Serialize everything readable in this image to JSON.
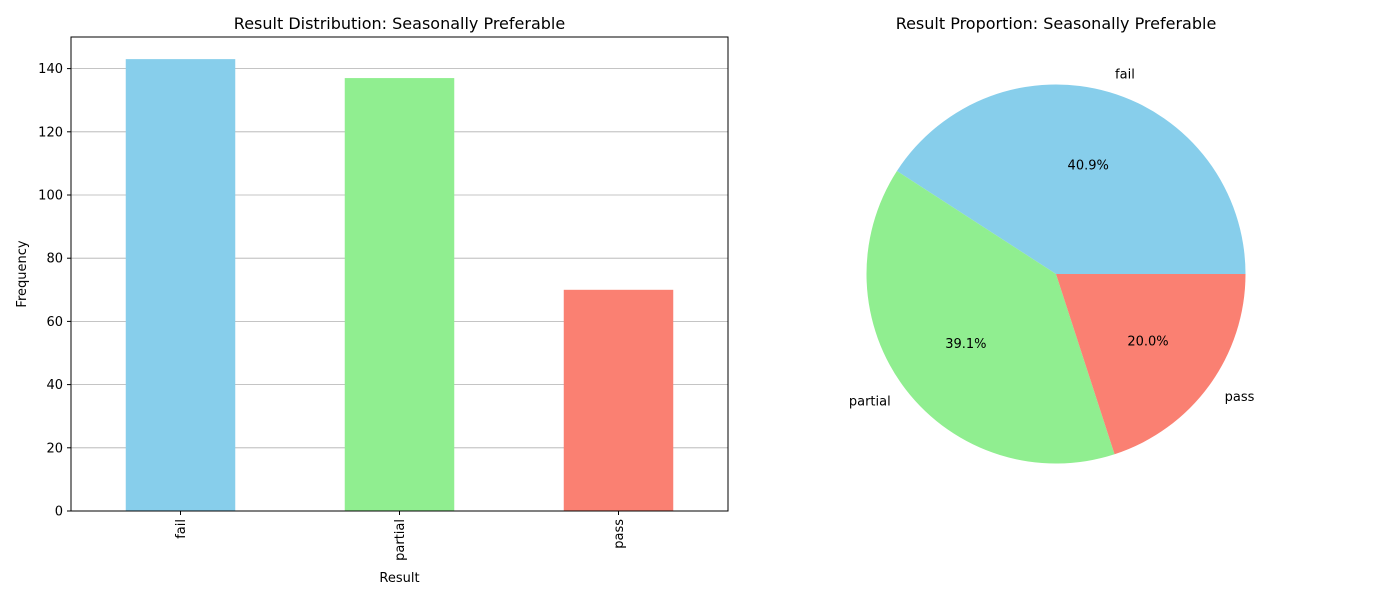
{
  "chart_data": [
    {
      "type": "bar",
      "title": "Result Distribution: Seasonally Preferable",
      "xlabel": "Result",
      "ylabel": "Frequency",
      "categories": [
        "fail",
        "partial",
        "pass"
      ],
      "values": [
        143,
        137,
        70
      ],
      "colors": [
        "#87CEEB",
        "#90EE90",
        "#FA8072"
      ],
      "ylim": [
        0,
        150
      ],
      "yticks": [
        0,
        20,
        40,
        60,
        80,
        100,
        120,
        140
      ],
      "grid": "y"
    },
    {
      "type": "pie",
      "title": "Result Proportion: Seasonally Preferable",
      "labels": [
        "fail",
        "partial",
        "pass"
      ],
      "values": [
        143,
        137,
        70
      ],
      "percent_labels": [
        "40.9%",
        "39.1%",
        "20.0%"
      ],
      "colors": [
        "#87CEEB",
        "#90EE90",
        "#FA8072"
      ]
    }
  ]
}
